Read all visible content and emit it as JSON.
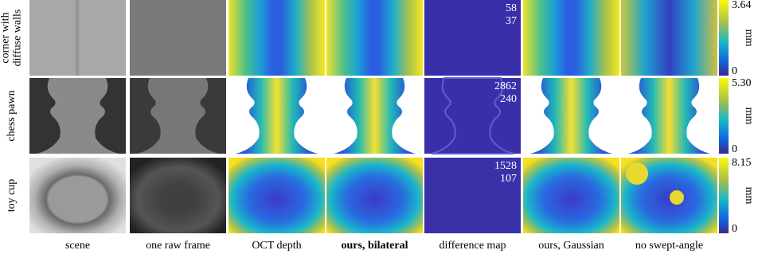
{
  "rows": [
    {
      "label": [
        "corner with",
        "diffuse walls"
      ],
      "difference": [
        "58",
        "37"
      ],
      "colorbar": {
        "max": "3.64",
        "min": "0",
        "unit": "mm"
      }
    },
    {
      "label": [
        "chess pawn"
      ],
      "difference": [
        "2862",
        "240"
      ],
      "colorbar": {
        "max": "5.30",
        "min": "0",
        "unit": "mm"
      }
    },
    {
      "label": [
        "toy cup"
      ],
      "difference": [
        "1528",
        "107"
      ],
      "colorbar": {
        "max": "8.15",
        "min": "0",
        "unit": "mm"
      }
    }
  ],
  "columns": [
    "scene",
    "one raw frame",
    "OCT depth",
    "ours, bilateral",
    "difference map",
    "ours, Gaussian",
    "no swept-angle"
  ]
}
